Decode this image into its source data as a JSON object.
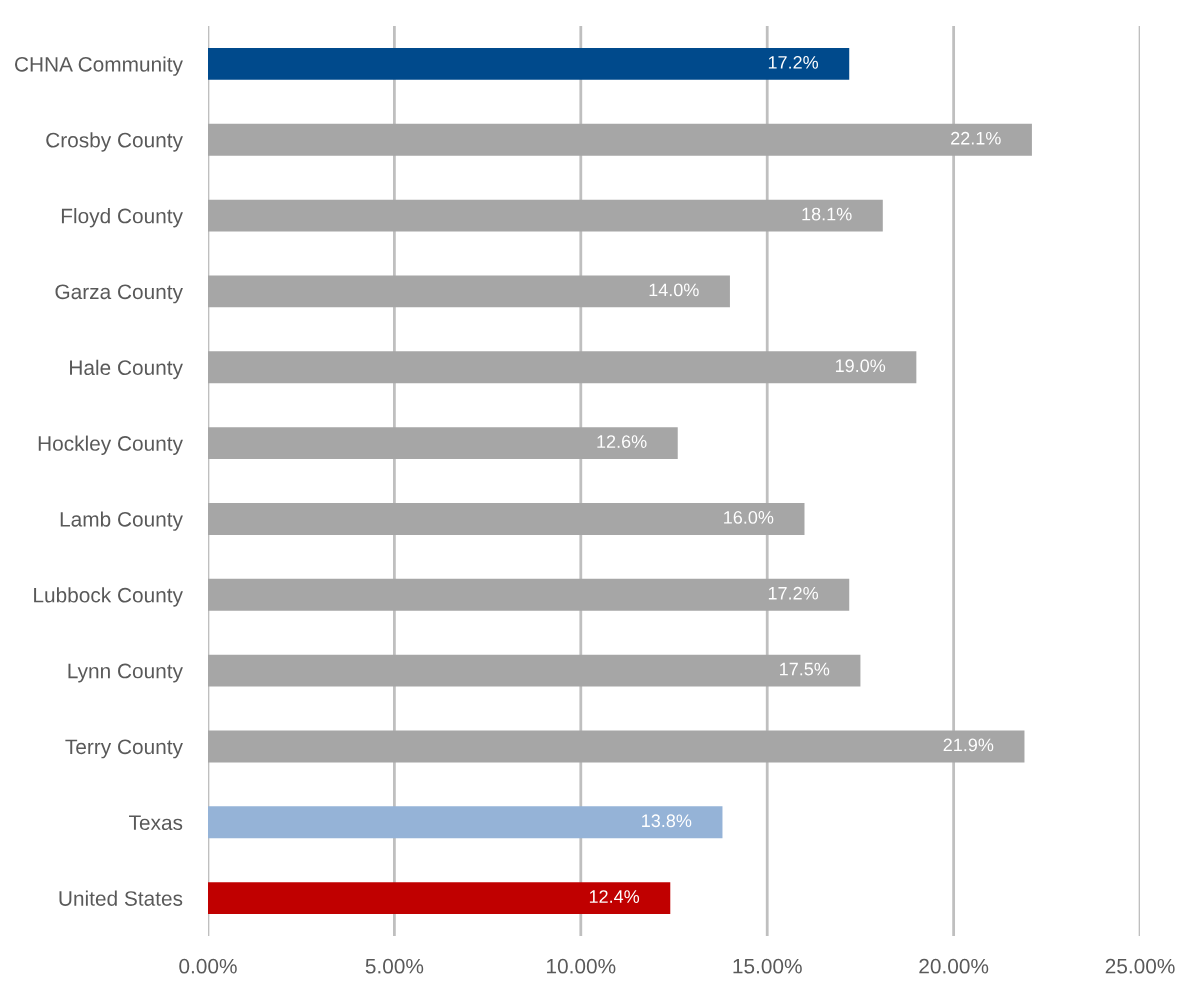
{
  "chart_data": {
    "type": "bar",
    "orientation": "horizontal",
    "categories": [
      "CHNA Community",
      "Crosby County",
      "Floyd County",
      "Garza County",
      "Hale County",
      "Hockley County",
      "Lamb County",
      "Lubbock County",
      "Lynn County",
      "Terry County",
      "Texas",
      "United States"
    ],
    "values": [
      17.2,
      22.1,
      18.1,
      14.0,
      19.0,
      12.6,
      16.0,
      17.2,
      17.5,
      21.9,
      13.8,
      12.4
    ],
    "colors": [
      "#004a8c",
      "#a6a6a6",
      "#a6a6a6",
      "#a6a6a6",
      "#a6a6a6",
      "#a6a6a6",
      "#a6a6a6",
      "#a6a6a6",
      "#a6a6a6",
      "#a6a6a6",
      "#95b3d7",
      "#c00000"
    ],
    "value_labels": [
      "17.2%",
      "22.1%",
      "18.1%",
      "14.0%",
      "19.0%",
      "12.6%",
      "16.0%",
      "17.2%",
      "17.5%",
      "21.9%",
      "13.8%",
      "12.4%"
    ],
    "xlim": [
      0,
      25
    ],
    "xticks": [
      {
        "value": 0,
        "label": "0.00%"
      },
      {
        "value": 5,
        "label": "5.00%"
      },
      {
        "value": 10,
        "label": "10.00%"
      },
      {
        "value": 15,
        "label": "15.00%"
      },
      {
        "value": 20,
        "label": "20.00%"
      },
      {
        "value": 25,
        "label": "25.00%"
      }
    ],
    "grid": "x"
  }
}
